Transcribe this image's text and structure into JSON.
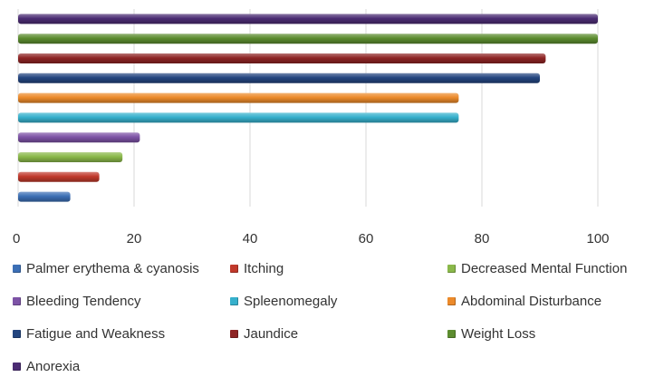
{
  "chart_data": {
    "type": "bar",
    "orientation": "horizontal",
    "title": "",
    "xlabel": "",
    "ylabel": "",
    "xlim": [
      0,
      100
    ],
    "xticks": [
      0,
      20,
      40,
      60,
      80,
      100
    ],
    "grid": true,
    "legend_position": "bottom",
    "series": [
      {
        "name": "Palmer erythema & cyanosis",
        "value": 9,
        "color": "#3c6fb5"
      },
      {
        "name": "Itching",
        "value": 14,
        "color": "#c0392b"
      },
      {
        "name": "Decreased Mental Function",
        "value": 18,
        "color": "#8ab84a"
      },
      {
        "name": "Bleeding Tendency",
        "value": 21,
        "color": "#7d53a6"
      },
      {
        "name": "Spleenomegaly",
        "value": 76,
        "color": "#36b0cc"
      },
      {
        "name": "Abdominal Disturbance",
        "value": 76,
        "color": "#ec8a2a"
      },
      {
        "name": "Fatigue and Weakness",
        "value": 90,
        "color": "#23457f"
      },
      {
        "name": "Jaundice",
        "value": 91,
        "color": "#8e2424"
      },
      {
        "name": "Weight Loss",
        "value": 100,
        "color": "#5c8c2f"
      },
      {
        "name": "Anorexia",
        "value": 100,
        "color": "#4b2c73"
      }
    ]
  }
}
